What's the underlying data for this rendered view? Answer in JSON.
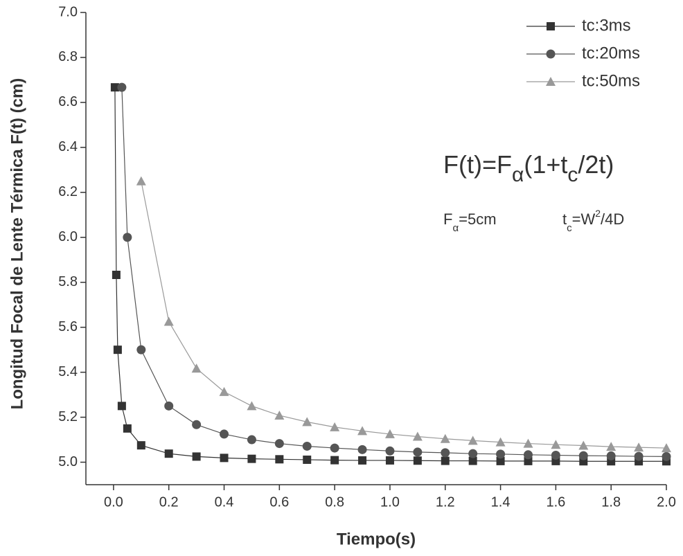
{
  "chart_data": {
    "type": "line",
    "x_label": "Tiempo(s)",
    "y_label": "Longitud  Focal de Lente Térmica F(t) (cm)",
    "xlim": [
      -0.1,
      2.0
    ],
    "ylim": [
      4.9,
      7.0
    ],
    "xticks": [
      {
        "value": 0,
        "label": "0.0"
      },
      {
        "value": 0.2,
        "label": "0.2"
      },
      {
        "value": 0.4,
        "label": "0.4"
      },
      {
        "value": 0.6,
        "label": "0.6"
      },
      {
        "value": 0.8,
        "label": "0.8"
      },
      {
        "value": 1.0,
        "label": "1.0"
      },
      {
        "value": 1.2,
        "label": "1.2"
      },
      {
        "value": 1.4,
        "label": "1.4"
      },
      {
        "value": 1.6,
        "label": "1.6"
      },
      {
        "value": 1.8,
        "label": "1.8"
      },
      {
        "value": 2.0,
        "label": "2.0"
      }
    ],
    "yticks": [
      {
        "value": 5.0,
        "label": "5.0"
      },
      {
        "value": 5.2,
        "label": "5.2"
      },
      {
        "value": 5.4,
        "label": "5.4"
      },
      {
        "value": 5.6,
        "label": "5.6"
      },
      {
        "value": 5.8,
        "label": "5.8"
      },
      {
        "value": 6.0,
        "label": "6.0"
      },
      {
        "value": 6.2,
        "label": "6.2"
      },
      {
        "value": 6.4,
        "label": "6.4"
      },
      {
        "value": 6.6,
        "label": "6.6"
      },
      {
        "value": 6.8,
        "label": "6.8"
      },
      {
        "value": 7.0,
        "label": "7.0"
      }
    ],
    "legend_position": "upper right",
    "grid": false,
    "series": [
      {
        "name": "tc:3ms",
        "color": "#333333",
        "marker": "square",
        "x": [
          0.005,
          0.01,
          0.015,
          0.03,
          0.05,
          0.1,
          0.2,
          0.3,
          0.4,
          0.5,
          0.6,
          0.7,
          0.8,
          0.9,
          1.0,
          1.1,
          1.2,
          1.3,
          1.4,
          1.5,
          1.6,
          1.7,
          1.8,
          1.9,
          2.0
        ],
        "values": [
          6.667,
          5.833,
          5.5,
          5.25,
          5.15,
          5.075,
          5.038,
          5.025,
          5.019,
          5.015,
          5.013,
          5.011,
          5.009,
          5.008,
          5.008,
          5.007,
          5.006,
          5.006,
          5.005,
          5.005,
          5.005,
          5.004,
          5.004,
          5.004,
          5.004
        ]
      },
      {
        "name": "tc:20ms",
        "color": "#555555",
        "marker": "circle",
        "x": [
          0.03,
          0.05,
          0.1,
          0.2,
          0.3,
          0.4,
          0.5,
          0.6,
          0.7,
          0.8,
          0.9,
          1.0,
          1.1,
          1.2,
          1.3,
          1.4,
          1.5,
          1.6,
          1.7,
          1.8,
          1.9,
          2.0
        ],
        "values": [
          6.667,
          6.0,
          5.5,
          5.25,
          5.167,
          5.125,
          5.1,
          5.083,
          5.071,
          5.063,
          5.056,
          5.05,
          5.045,
          5.042,
          5.038,
          5.036,
          5.033,
          5.031,
          5.029,
          5.028,
          5.026,
          5.025
        ]
      },
      {
        "name": "tc:50ms",
        "color": "#999999",
        "marker": "triangle",
        "x": [
          0.1,
          0.2,
          0.3,
          0.4,
          0.5,
          0.6,
          0.7,
          0.8,
          0.9,
          1.0,
          1.1,
          1.2,
          1.3,
          1.4,
          1.5,
          1.6,
          1.7,
          1.8,
          1.9,
          2.0
        ],
        "values": [
          6.25,
          5.625,
          5.417,
          5.313,
          5.25,
          5.208,
          5.179,
          5.156,
          5.139,
          5.125,
          5.114,
          5.104,
          5.096,
          5.089,
          5.083,
          5.078,
          5.074,
          5.069,
          5.066,
          5.063
        ]
      }
    ],
    "annotations": {
      "equation": [
        "F(t)=F",
        "α",
        "(1+t",
        "c",
        "/2t)"
      ],
      "parameters": [
        "F",
        "α",
        "=5cm",
        "t",
        "c",
        "=W",
        "2",
        "/4D"
      ]
    }
  }
}
